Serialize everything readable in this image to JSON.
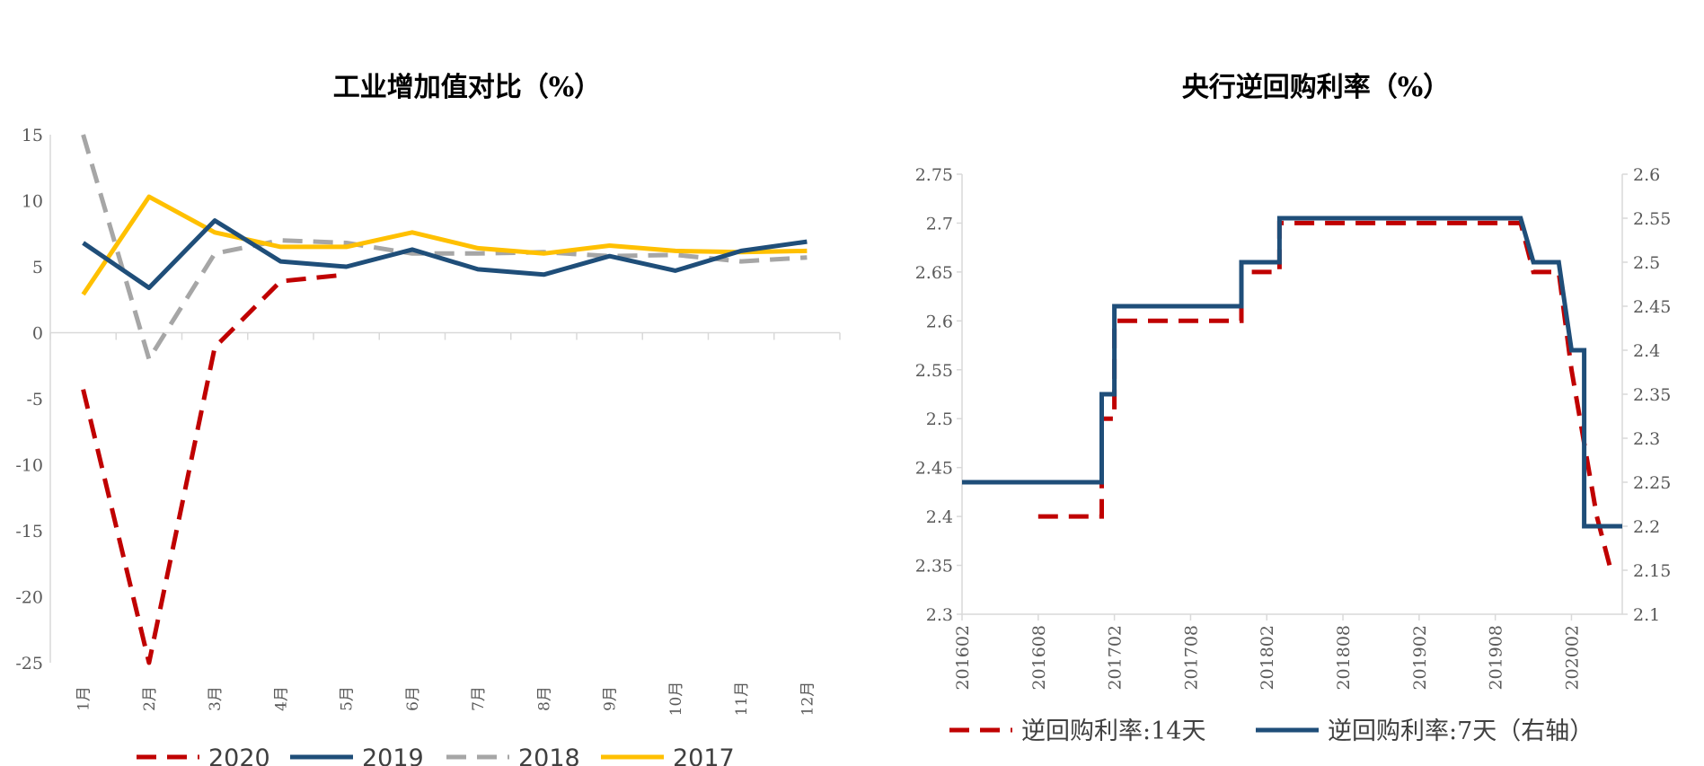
{
  "chart_data": [
    {
      "type": "line",
      "title": "工业增加值对比（%）",
      "categories": [
        "1月",
        "2月",
        "3月",
        "4月",
        "5月",
        "6月",
        "7月",
        "8月",
        "9月",
        "10月",
        "11月",
        "12月"
      ],
      "ylim": [
        -25,
        15
      ],
      "yticks": [
        "15",
        "10",
        "5",
        "0",
        "-5",
        "-10",
        "-15",
        "-20",
        "-25"
      ],
      "legend_position": "bottom",
      "series": [
        {
          "name": "2020",
          "color": "#C00000",
          "dash": true,
          "values": [
            -4.3,
            -25.1,
            -1.1,
            3.9,
            4.4,
            null,
            null,
            null,
            null,
            null,
            null,
            null
          ]
        },
        {
          "name": "2019",
          "color": "#1F4E79",
          "dash": false,
          "values": [
            6.8,
            3.4,
            8.5,
            5.4,
            5.0,
            6.3,
            4.8,
            4.4,
            5.8,
            4.7,
            6.2,
            6.9
          ]
        },
        {
          "name": "2018",
          "color": "#A6A6A6",
          "dash": true,
          "values": [
            15.0,
            -2.0,
            6.0,
            7.0,
            6.8,
            6.0,
            6.0,
            6.1,
            5.8,
            5.9,
            5.4,
            5.7
          ]
        },
        {
          "name": "2017",
          "color": "#FFC000",
          "dash": false,
          "values": [
            2.9,
            10.3,
            7.6,
            6.5,
            6.5,
            7.6,
            6.4,
            6.0,
            6.6,
            6.2,
            6.1,
            6.2
          ]
        }
      ]
    },
    {
      "type": "line",
      "title": "央行逆回购利率（%）",
      "xticks": [
        "201602",
        "201608",
        "201702",
        "201708",
        "201802",
        "201808",
        "201902",
        "201908",
        "202002"
      ],
      "x_range": [
        "2016-02",
        "2020-06"
      ],
      "ylim_left": [
        2.3,
        2.75
      ],
      "ylim_right": [
        2.1,
        2.6
      ],
      "yticks_left": [
        "2.75",
        "2.7",
        "2.65",
        "2.6",
        "2.55",
        "2.5",
        "2.45",
        "2.4",
        "2.35",
        "2.3"
      ],
      "yticks_right": [
        "2.6",
        "2.55",
        "2.5",
        "2.45",
        "2.4",
        "2.35",
        "2.3",
        "2.25",
        "2.2",
        "2.15",
        "2.1"
      ],
      "legend_position": "bottom",
      "series": [
        {
          "name": "逆回购利率:14天",
          "axis": "left",
          "color": "#C00000",
          "dash": true,
          "points": [
            [
              "2016-08",
              2.4
            ],
            [
              "2017-01",
              2.4
            ],
            [
              "2017-01",
              2.5
            ],
            [
              "2017-02",
              2.5
            ],
            [
              "2017-02",
              2.6
            ],
            [
              "2017-12",
              2.6
            ],
            [
              "2017-12",
              2.65
            ],
            [
              "2018-03",
              2.65
            ],
            [
              "2018-03",
              2.7
            ],
            [
              "2019-10",
              2.7
            ],
            [
              "2019-11",
              2.65
            ],
            [
              "2020-01",
              2.65
            ],
            [
              "2020-02",
              2.55
            ],
            [
              "2020-04",
              2.4
            ],
            [
              "2020-05",
              2.35
            ]
          ]
        },
        {
          "name": "逆回购利率:7天（右轴）",
          "axis": "right",
          "color": "#1F4E79",
          "dash": false,
          "points": [
            [
              "2016-02",
              2.25
            ],
            [
              "2017-01",
              2.25
            ],
            [
              "2017-01",
              2.35
            ],
            [
              "2017-02",
              2.35
            ],
            [
              "2017-02",
              2.45
            ],
            [
              "2017-12",
              2.45
            ],
            [
              "2017-12",
              2.5
            ],
            [
              "2018-03",
              2.5
            ],
            [
              "2018-03",
              2.55
            ],
            [
              "2019-10",
              2.55
            ],
            [
              "2019-11",
              2.5
            ],
            [
              "2020-01",
              2.5
            ],
            [
              "2020-02",
              2.4
            ],
            [
              "2020-03",
              2.4
            ],
            [
              "2020-03",
              2.2
            ],
            [
              "2020-06",
              2.2
            ]
          ]
        }
      ]
    }
  ]
}
